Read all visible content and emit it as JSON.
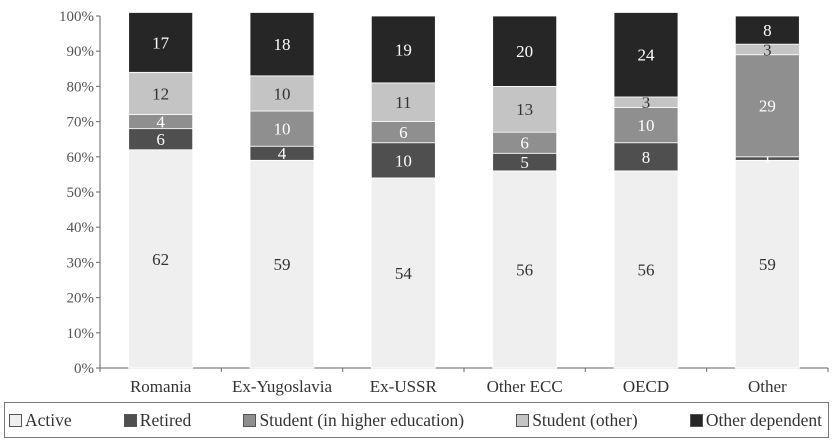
{
  "chart_data": {
    "type": "bar",
    "stacked": true,
    "categories": [
      "Romania",
      "Ex-Yugoslavia",
      "Ex-USSR",
      "Other ECC",
      "OECD",
      "Other"
    ],
    "series": [
      {
        "name": "Active",
        "values": [
          62,
          59,
          54,
          56,
          56,
          59
        ],
        "color": "#efefef"
      },
      {
        "name": "Retired",
        "values": [
          6,
          4,
          10,
          5,
          8,
          1
        ],
        "color": "#4f4f4f"
      },
      {
        "name": "Student (in higher education)",
        "values": [
          4,
          10,
          6,
          6,
          10,
          29
        ],
        "color": "#8f8f8f"
      },
      {
        "name": "Student (other)",
        "values": [
          12,
          10,
          11,
          13,
          3,
          3
        ],
        "color": "#c4c4c4"
      },
      {
        "name": "Other dependent",
        "values": [
          17,
          18,
          19,
          20,
          24,
          8
        ],
        "color": "#262626"
      }
    ],
    "data_labels": [
      [
        "62",
        "6",
        "4",
        "12",
        "17"
      ],
      [
        "59",
        "4",
        "10",
        "10",
        "18"
      ],
      [
        "54",
        "10",
        "6",
        "11",
        "19"
      ],
      [
        "56",
        "5",
        "6",
        "13",
        "20"
      ],
      [
        "56",
        "8",
        "10",
        "3",
        "24"
      ],
      [
        "59",
        "1",
        "29",
        "3",
        "8"
      ]
    ],
    "y_ticks": [
      "0%",
      "10%",
      "20%",
      "30%",
      "40%",
      "50%",
      "60%",
      "70%",
      "80%",
      "90%",
      "100%"
    ],
    "ylim": [
      0,
      100
    ],
    "legend_position": "bottom",
    "grid": false
  }
}
